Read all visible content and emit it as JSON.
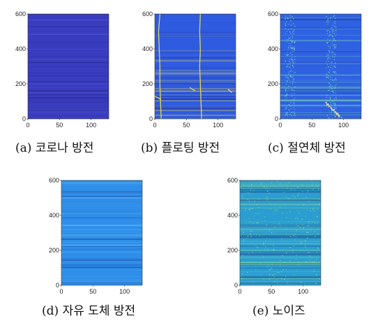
{
  "figure": {
    "panels": [
      {
        "caption": "(a) 코로나 방전",
        "y_ticks": [
          "0",
          "200",
          "400",
          "600"
        ],
        "x_ticks": [
          "0",
          "50",
          "100"
        ],
        "base_color": "#3A3CC0",
        "stripe_color": "#5B6BE0"
      },
      {
        "caption": "(b) 플로팅 방전",
        "y_ticks": [
          "0",
          "200",
          "400",
          "600"
        ],
        "x_ticks": [
          "0",
          "50",
          "100"
        ],
        "base_color": "#2F5BE0",
        "stripe_color": "#E0D860"
      },
      {
        "caption": "(c) 절연체 방전",
        "y_ticks": [
          "0",
          "200",
          "400",
          "600"
        ],
        "x_ticks": [
          "0",
          "50",
          "100"
        ],
        "base_color": "#2F62E2",
        "stripe_color": "#7FE0B8"
      },
      {
        "caption": "(d) 자유 도체 방전",
        "y_ticks": [
          "0",
          "200",
          "400",
          "600"
        ],
        "x_ticks": [
          "0",
          "50",
          "100"
        ],
        "base_color": "#2E8EEA",
        "stripe_color": "#6DC9EE"
      },
      {
        "caption": "(e) 노이즈",
        "y_ticks": [
          "0",
          "200",
          "400",
          "600"
        ],
        "x_ticks": [
          "0",
          "50",
          "100"
        ],
        "base_color": "#2A9ED0",
        "stripe_color": "#9EE08A"
      }
    ]
  },
  "chart_data": [
    {
      "type": "heatmap",
      "xlim": [
        0,
        128
      ],
      "ylim": [
        0,
        600
      ],
      "x_ticks": [
        0,
        50,
        100
      ],
      "y_ticks": [
        0,
        200,
        400,
        600
      ]
    },
    {
      "type": "heatmap",
      "xlim": [
        0,
        128
      ],
      "ylim": [
        0,
        600
      ],
      "x_ticks": [
        0,
        50,
        100
      ],
      "y_ticks": [
        0,
        200,
        400,
        600
      ]
    },
    {
      "type": "heatmap",
      "xlim": [
        0,
        128
      ],
      "ylim": [
        0,
        600
      ],
      "x_ticks": [
        0,
        50,
        100
      ],
      "y_ticks": [
        0,
        200,
        400,
        600
      ]
    },
    {
      "type": "heatmap",
      "xlim": [
        0,
        128
      ],
      "ylim": [
        0,
        600
      ],
      "x_ticks": [
        0,
        50,
        100
      ],
      "y_ticks": [
        0,
        200,
        400,
        600
      ]
    },
    {
      "type": "heatmap",
      "xlim": [
        0,
        128
      ],
      "ylim": [
        0,
        600
      ],
      "x_ticks": [
        0,
        50,
        100
      ],
      "y_ticks": [
        0,
        200,
        400,
        600
      ]
    }
  ]
}
